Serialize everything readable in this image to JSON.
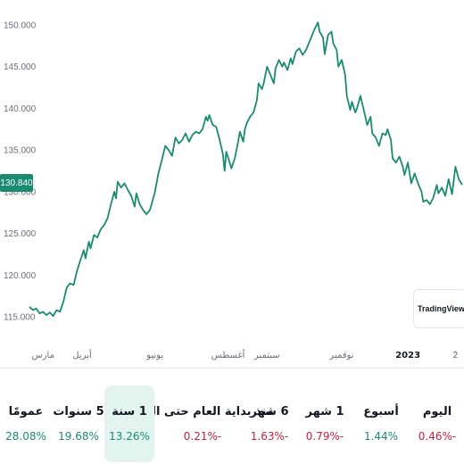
{
  "chart_data": {
    "type": "line",
    "title": "",
    "xlabel": "",
    "ylabel": "",
    "ylim": [
      113.0,
      152.0
    ],
    "y_ticks": [
      "150.000",
      "145.000",
      "140.000",
      "135.000",
      "130.000",
      "125.000",
      "120.000",
      "115.000"
    ],
    "x_ticks": [
      {
        "label": "مارس",
        "x": 8
      },
      {
        "label": "أبريل",
        "x": 31
      },
      {
        "label": "يونيو",
        "x": 74
      },
      {
        "label": "أغسطس",
        "x": 117
      },
      {
        "label": "سبتمبر",
        "x": 140
      },
      {
        "label": "نوفمبر",
        "x": 184
      },
      {
        "label": "2023",
        "x": 223,
        "bold": true
      },
      {
        "label": "2",
        "x": 251
      }
    ],
    "x_range": [
      0,
      255
    ],
    "line_color": "#1a8a71",
    "series": [
      {
        "values": [
          [
            0,
            116.2
          ],
          [
            2,
            115.8
          ],
          [
            4,
            116.0
          ],
          [
            6,
            115.4
          ],
          [
            8,
            115.6
          ],
          [
            10,
            115.2
          ],
          [
            12,
            115.5
          ],
          [
            14,
            115.1
          ],
          [
            16,
            115.8
          ],
          [
            18,
            115.6
          ],
          [
            20,
            116.8
          ],
          [
            22,
            118.5
          ],
          [
            24,
            119.0
          ],
          [
            26,
            118.8
          ],
          [
            28,
            120.5
          ],
          [
            30,
            121.8
          ],
          [
            32,
            123.0
          ],
          [
            33,
            122.0
          ],
          [
            35,
            124.0
          ],
          [
            36,
            123.2
          ],
          [
            38,
            124.8
          ],
          [
            40,
            124.5
          ],
          [
            42,
            125.5
          ],
          [
            44,
            126.0
          ],
          [
            46,
            126.8
          ],
          [
            48,
            128.5
          ],
          [
            50,
            130.0
          ],
          [
            51,
            129.2
          ],
          [
            52,
            131.2
          ],
          [
            54,
            130.5
          ],
          [
            56,
            131.0
          ],
          [
            58,
            130.2
          ],
          [
            60,
            129.5
          ],
          [
            62,
            128.2
          ],
          [
            63,
            129.8
          ],
          [
            65,
            128.5
          ],
          [
            67,
            127.8
          ],
          [
            69,
            127.3
          ],
          [
            71,
            127.8
          ],
          [
            72,
            128.5
          ],
          [
            74,
            130.0
          ],
          [
            76,
            132.2
          ],
          [
            78,
            133.8
          ],
          [
            80,
            135.5
          ],
          [
            82,
            135.0
          ],
          [
            84,
            134.3
          ],
          [
            86,
            136.5
          ],
          [
            88,
            135.8
          ],
          [
            90,
            136.2
          ],
          [
            92,
            137.0
          ],
          [
            94,
            136.0
          ],
          [
            96,
            136.8
          ],
          [
            98,
            137.2
          ],
          [
            100,
            137.0
          ],
          [
            102,
            137.5
          ],
          [
            104,
            139.0
          ],
          [
            105,
            138.5
          ],
          [
            106,
            139.2
          ],
          [
            108,
            138.0
          ],
          [
            110,
            137.8
          ],
          [
            112,
            136.3
          ],
          [
            114,
            134.5
          ],
          [
            115,
            132.5
          ],
          [
            116,
            134.8
          ],
          [
            118,
            133.5
          ],
          [
            119,
            132.8
          ],
          [
            121,
            134.0
          ],
          [
            123,
            136.0
          ],
          [
            124,
            137.2
          ],
          [
            126,
            136.0
          ],
          [
            127,
            137.5
          ],
          [
            128,
            138.2
          ],
          [
            130,
            139.0
          ],
          [
            132,
            139.5
          ],
          [
            134,
            141.0
          ],
          [
            135,
            143.0
          ],
          [
            137,
            142.3
          ],
          [
            138,
            143.0
          ],
          [
            140,
            145.0
          ],
          [
            142,
            144.0
          ],
          [
            144,
            143.0
          ],
          [
            145,
            144.8
          ],
          [
            147,
            145.8
          ],
          [
            149,
            145.0
          ],
          [
            150,
            145.5
          ],
          [
            152,
            144.6
          ],
          [
            154,
            146.0
          ],
          [
            155,
            145.3
          ],
          [
            157,
            146.8
          ],
          [
            159,
            147.2
          ],
          [
            161,
            146.4
          ],
          [
            163,
            147.0
          ],
          [
            165,
            148.0
          ],
          [
            167,
            149.0
          ],
          [
            168,
            149.5
          ],
          [
            170,
            150.3
          ],
          [
            171,
            149.2
          ],
          [
            173,
            148.5
          ],
          [
            174,
            146.5
          ],
          [
            176,
            148.8
          ],
          [
            178,
            149.2
          ],
          [
            179,
            147.8
          ],
          [
            181,
            147.0
          ],
          [
            182,
            145.0
          ],
          [
            184,
            145.8
          ],
          [
            186,
            144.0
          ],
          [
            187,
            141.5
          ],
          [
            189,
            139.8
          ],
          [
            190,
            140.8
          ],
          [
            192,
            139.5
          ],
          [
            193,
            140.0
          ],
          [
            195,
            141.5
          ],
          [
            197,
            139.8
          ],
          [
            199,
            138.0
          ],
          [
            201,
            139.0
          ],
          [
            202,
            137.0
          ],
          [
            204,
            136.5
          ],
          [
            206,
            135.5
          ],
          [
            208,
            137.0
          ],
          [
            210,
            136.8
          ],
          [
            211,
            137.5
          ],
          [
            213,
            136.2
          ],
          [
            214,
            134.0
          ],
          [
            216,
            133.5
          ],
          [
            218,
            134.2
          ],
          [
            220,
            133.0
          ],
          [
            221,
            132.0
          ],
          [
            223,
            133.5
          ],
          [
            225,
            131.0
          ],
          [
            227,
            132.2
          ],
          [
            229,
            131.0
          ],
          [
            231,
            130.0
          ],
          [
            232,
            128.8
          ],
          [
            234,
            129.0
          ],
          [
            236,
            128.5
          ],
          [
            238,
            129.3
          ],
          [
            240,
            130.8
          ],
          [
            241,
            129.8
          ],
          [
            243,
            130.5
          ],
          [
            245,
            129.5
          ],
          [
            247,
            131.5
          ],
          [
            249,
            129.7
          ],
          [
            251,
            133.0
          ],
          [
            253,
            131.5
          ],
          [
            255,
            130.84
          ]
        ]
      }
    ],
    "last_price": "130.840"
  },
  "branding": {
    "name": "TradingView"
  },
  "periods": [
    {
      "label": "اليوم",
      "value": "0.46%-",
      "sign": "neg",
      "selected": false
    },
    {
      "label": "أسبوع",
      "value": "1.44%",
      "sign": "pos",
      "selected": false
    },
    {
      "label": "1 شهر",
      "value": "0.79%-",
      "sign": "neg",
      "selected": false
    },
    {
      "label": "6 شهر",
      "value": "1.63%-",
      "sign": "neg",
      "selected": false
    },
    {
      "label": "منذ بداية العام حتى اليوم",
      "value": "0.21%-",
      "sign": "neg",
      "selected": false
    },
    {
      "label": "1 سنة",
      "value": "13.26%",
      "sign": "pos",
      "selected": true
    },
    {
      "label": "5 سنوات",
      "value": "19.68%",
      "sign": "pos",
      "selected": false
    },
    {
      "label": "عمومًا",
      "value": "28.08%",
      "sign": "pos",
      "selected": false
    }
  ]
}
